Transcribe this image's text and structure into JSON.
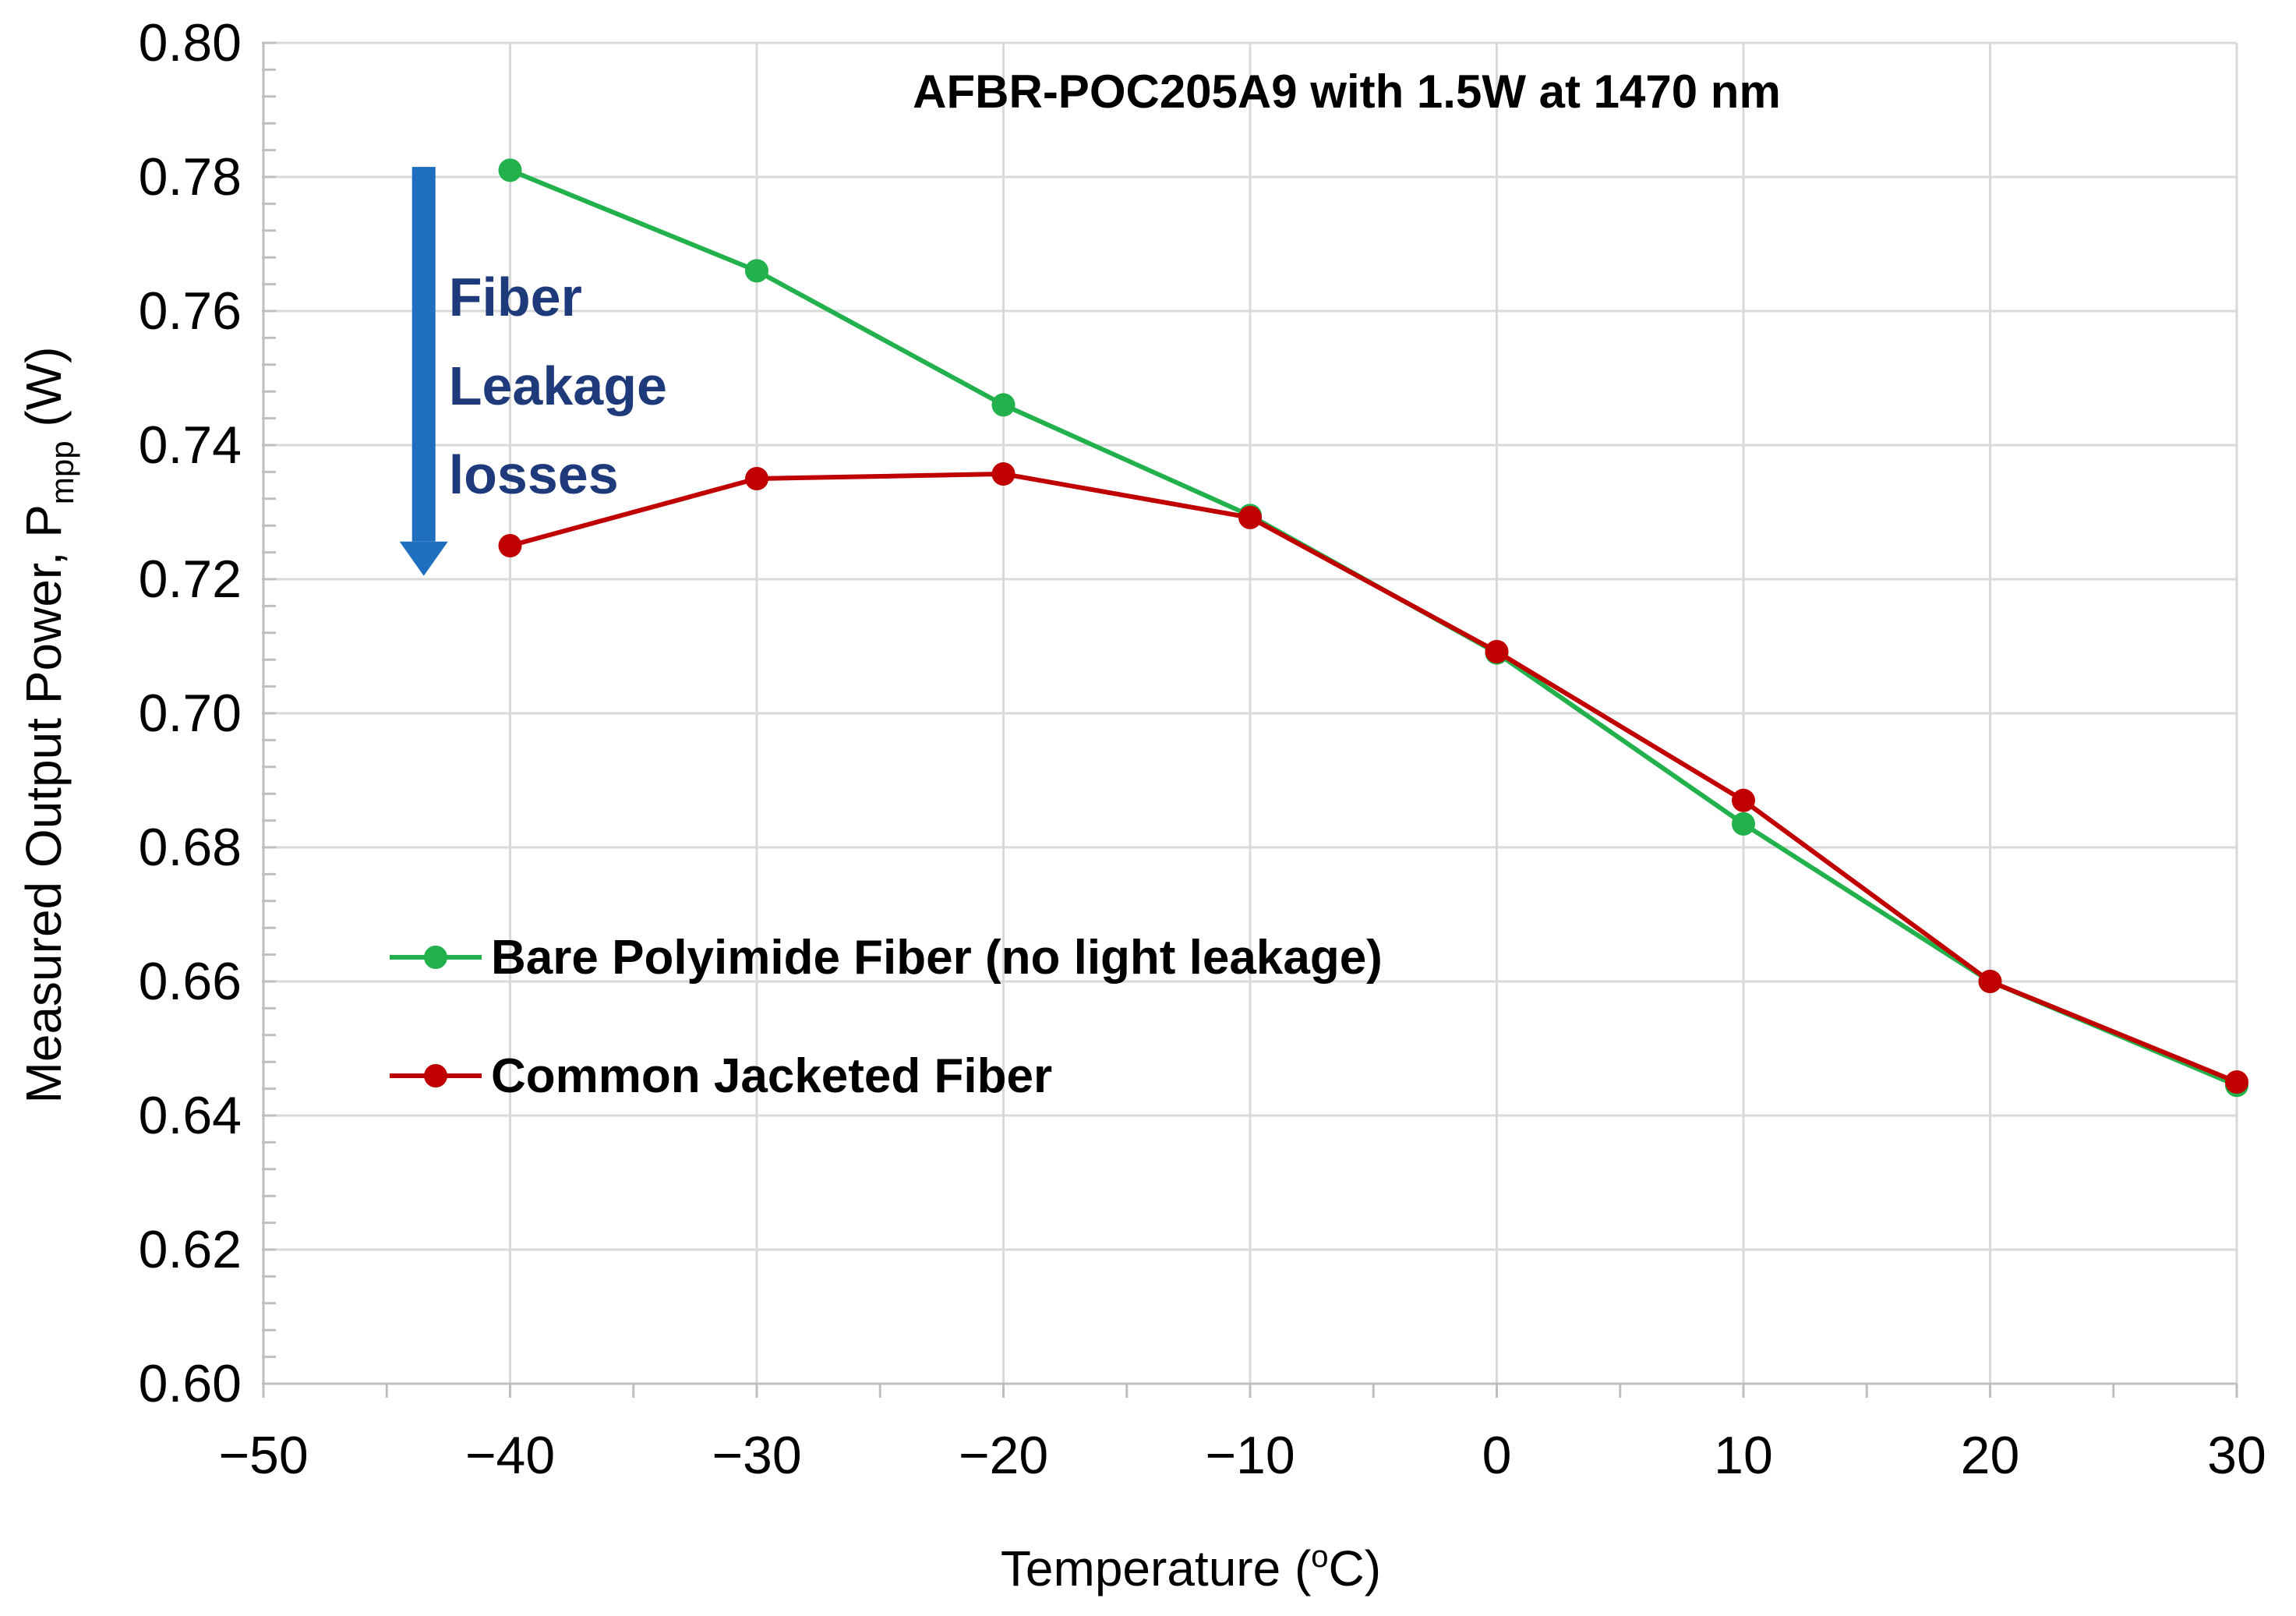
{
  "chart_data": {
    "type": "line",
    "title": "AFBR-POC205A9 with 1.5W at 1470 nm",
    "xlabel": "Temperature (°C)",
    "xlabel_parts": {
      "main": "Temperature (",
      "sup": "o",
      "tail": "C)"
    },
    "ylabel": "Measured Output Power, Pmpp (W)",
    "ylabel_parts": {
      "main": "Measured Output Power, P",
      "sub": "mpp",
      "tail": " (W)"
    },
    "xlim": [
      -50,
      30
    ],
    "ylim": [
      0.6,
      0.8
    ],
    "x_ticks": [
      -50,
      -40,
      -30,
      -20,
      -10,
      0,
      10,
      20,
      30
    ],
    "x_tick_labels": [
      "−50",
      "−40",
      "−30",
      "−20",
      "−10",
      "0",
      "10",
      "20",
      "30"
    ],
    "y_ticks": [
      0.6,
      0.62,
      0.64,
      0.66,
      0.68,
      0.7,
      0.72,
      0.74,
      0.76,
      0.78,
      0.8
    ],
    "y_tick_labels": [
      "0.60",
      "0.62",
      "0.64",
      "0.66",
      "0.68",
      "0.70",
      "0.72",
      "0.74",
      "0.76",
      "0.78",
      "0.80"
    ],
    "grid": true,
    "legend_position": "middle-left",
    "series": [
      {
        "name": "Bare Polyimide Fiber (no light leakage)",
        "color": "#22b14c",
        "x": [
          -40,
          -30,
          -20,
          -10,
          0,
          10,
          20,
          30
        ],
        "y": [
          0.781,
          0.766,
          0.746,
          0.7295,
          0.709,
          0.6835,
          0.66,
          0.6445
        ]
      },
      {
        "name": "Common Jacketed Fiber",
        "color": "#c00000",
        "x": [
          -40,
          -30,
          -20,
          -10,
          0,
          10,
          20,
          30
        ],
        "y": [
          0.725,
          0.735,
          0.7357,
          0.7292,
          0.7092,
          0.687,
          0.66,
          0.645
        ]
      }
    ],
    "annotations": [
      {
        "text_lines": [
          "Fiber",
          "Leakage",
          "losses"
        ],
        "color": "#1f3a7a",
        "arrow_color": "#1f6fbf",
        "arrow_direction": "down",
        "arrow_x": -43.5,
        "arrow_from_y": 0.7815,
        "arrow_to_y": 0.7205
      }
    ]
  }
}
